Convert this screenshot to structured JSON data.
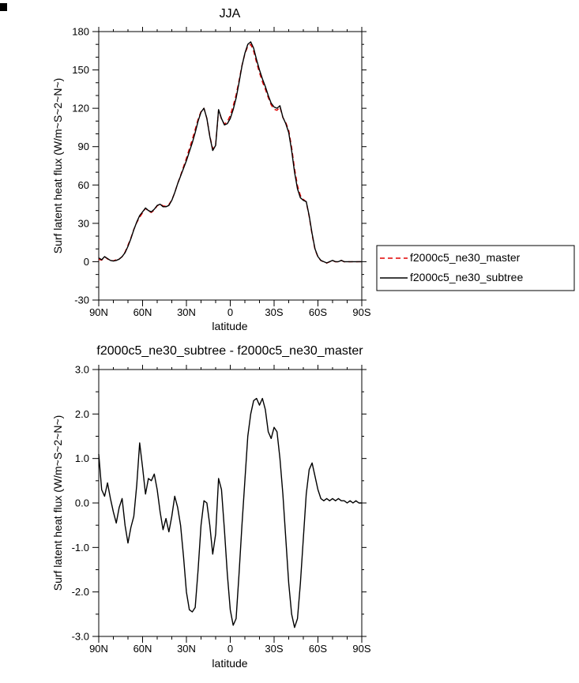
{
  "colors": {
    "background": "#ffffff",
    "axis": "#000000"
  },
  "chart_data": [
    {
      "type": "line",
      "title": "JJA",
      "xlabel": "latitude",
      "ylabel": "Surf latent heat flux (W/m~S~2~N~)",
      "xlim": [
        90,
        -90
      ],
      "ylim": [
        -30,
        180
      ],
      "x_tick_values": [
        90,
        60,
        30,
        0,
        -30,
        -60,
        -90
      ],
      "x_tick_labels": [
        "90N",
        "60N",
        "30N",
        "0",
        "30S",
        "60S",
        "90S"
      ],
      "x_minor_step": 10,
      "y_tick_values": [
        180,
        150,
        120,
        90,
        60,
        30,
        0,
        -30
      ],
      "y_tick_labels": [
        "180",
        "150",
        "120",
        "90",
        "60",
        "30",
        "0",
        "-30"
      ],
      "y_minor_step": 10,
      "x": [
        90,
        88,
        86,
        84,
        82,
        80,
        78,
        76,
        74,
        72,
        70,
        68,
        66,
        64,
        62,
        60,
        58,
        56,
        54,
        52,
        50,
        48,
        46,
        44,
        42,
        40,
        38,
        36,
        34,
        32,
        30,
        28,
        26,
        24,
        22,
        20,
        18,
        16,
        14,
        12,
        10,
        8,
        6,
        4,
        2,
        0,
        -2,
        -4,
        -6,
        -8,
        -10,
        -12,
        -14,
        -16,
        -18,
        -20,
        -22,
        -24,
        -26,
        -28,
        -30,
        -32,
        -34,
        -36,
        -38,
        -40,
        -42,
        -44,
        -46,
        -48,
        -50,
        -52,
        -54,
        -56,
        -58,
        -60,
        -62,
        -64,
        -66,
        -68,
        -70,
        -72,
        -74,
        -76,
        -78,
        -80,
        -82,
        -84,
        -86,
        -88,
        -90
      ],
      "series": [
        {
          "name": "f2000c5_ne30_master",
          "color": "#e00000",
          "style": "dashed",
          "values": [
            1.9,
            1.2,
            3.9,
            2.1,
            0.9,
            0.7,
            1.5,
            2.1,
            3.9,
            7.5,
            12.9,
            18.6,
            25.3,
            30.6,
            34.7,
            38.2,
            41.8,
            39.5,
            38.5,
            40.4,
            43.7,
            45.2,
            43.6,
            43.4,
            44.7,
            48.3,
            53.9,
            61.1,
            67.5,
            74.2,
            81,
            88.4,
            95.5,
            103.4,
            111.5,
            117.5,
            120,
            112,
            98.5,
            88.2,
            91.7,
            118.5,
            111.7,
            107.6,
            109.6,
            114.4,
            121.8,
            130.6,
            141.6,
            153.5,
            162.5,
            168.5,
            170,
            164.7,
            155.7,
            147.8,
            140.7,
            134.9,
            128.4,
            122.6,
            119.3,
            118.4,
            121,
            112.8,
            108.8,
            102.8,
            89.5,
            72.8,
            59.6,
            51.8,
            48.8,
            46.8,
            35.3,
            21.1,
            9.4,
            3.7,
            0.9,
            -0.1,
            -1.1,
            -0.1,
            0.9,
            -0.1,
            -0.1,
            1,
            -0.1,
            0,
            -0.1,
            0,
            -0.1,
            0,
            0
          ]
        },
        {
          "name": "f2000c5_ne30_subtree",
          "color": "#000000",
          "style": "solid",
          "values": [
            3,
            1.5,
            4,
            2.5,
            1,
            0.5,
            1,
            2,
            4,
            7,
            12,
            18,
            25,
            31,
            36,
            39,
            42,
            40,
            39,
            41,
            44,
            45,
            43,
            43,
            44,
            48,
            54,
            61,
            67,
            73,
            79,
            86,
            93,
            101,
            110,
            117,
            120,
            112,
            98,
            87,
            91,
            119,
            112,
            107,
            108,
            112,
            119,
            128,
            140,
            153,
            163,
            170,
            172,
            167,
            158,
            150,
            143,
            137,
            130,
            124,
            121,
            120,
            122,
            113,
            108,
            101,
            87,
            70,
            57,
            50,
            48,
            47,
            36,
            22,
            10,
            4,
            1,
            0,
            -1,
            0,
            1,
            0,
            0,
            1,
            0,
            0,
            0,
            0,
            0,
            0,
            0
          ]
        }
      ]
    },
    {
      "type": "line",
      "title": "f2000c5_ne30_subtree - f2000c5_ne30_master",
      "xlabel": "latitude",
      "ylabel": "Surf latent heat flux (W/m~S~2~N~)",
      "xlim": [
        90,
        -90
      ],
      "ylim": [
        -3,
        3
      ],
      "x_tick_values": [
        90,
        60,
        30,
        0,
        -30,
        -60,
        -90
      ],
      "x_tick_labels": [
        "90N",
        "60N",
        "30N",
        "0",
        "30S",
        "60S",
        "90S"
      ],
      "x_minor_step": 10,
      "y_tick_values": [
        3,
        2,
        1,
        0,
        -1,
        -2,
        -3
      ],
      "y_tick_labels": [
        "3.0",
        "2.0",
        "1.0",
        "0.0",
        "-1.0",
        "-2.0",
        "-3.0"
      ],
      "y_minor_step": 0.5,
      "x": [
        90,
        88,
        86,
        84,
        82,
        80,
        78,
        76,
        74,
        72,
        70,
        68,
        66,
        64,
        62,
        60,
        58,
        56,
        54,
        52,
        50,
        48,
        46,
        44,
        42,
        40,
        38,
        36,
        34,
        32,
        30,
        28,
        26,
        24,
        22,
        20,
        18,
        16,
        14,
        12,
        10,
        8,
        6,
        4,
        2,
        0,
        -2,
        -4,
        -6,
        -8,
        -10,
        -12,
        -14,
        -16,
        -18,
        -20,
        -22,
        -24,
        -26,
        -28,
        -30,
        -32,
        -34,
        -36,
        -38,
        -40,
        -42,
        -44,
        -46,
        -48,
        -50,
        -52,
        -54,
        -56,
        -58,
        -60,
        -62,
        -64,
        -66,
        -68,
        -70,
        -72,
        -74,
        -76,
        -78,
        -80,
        -82,
        -84,
        -86,
        -88,
        -90
      ],
      "series": [
        {
          "name": "f2000c5_ne30_subtree - f2000c5_ne30_master",
          "color": "#000000",
          "style": "solid",
          "values": [
            1.1,
            0.3,
            0.15,
            0.45,
            0.1,
            -0.2,
            -0.45,
            -0.1,
            0.1,
            -0.5,
            -0.9,
            -0.55,
            -0.3,
            0.4,
            1.35,
            0.8,
            0.2,
            0.55,
            0.5,
            0.65,
            0.3,
            -0.2,
            -0.6,
            -0.35,
            -0.65,
            -0.3,
            0.15,
            -0.1,
            -0.5,
            -1.2,
            -2.0,
            -2.4,
            -2.45,
            -2.35,
            -1.5,
            -0.5,
            0.05,
            0.0,
            -0.5,
            -1.15,
            -0.7,
            0.55,
            0.3,
            -0.6,
            -1.6,
            -2.4,
            -2.75,
            -2.6,
            -1.6,
            -0.5,
            0.5,
            1.5,
            2.0,
            2.3,
            2.35,
            2.2,
            2.35,
            2.1,
            1.6,
            1.45,
            1.7,
            1.6,
            1.0,
            0.2,
            -0.8,
            -1.8,
            -2.5,
            -2.8,
            -2.6,
            -1.8,
            -0.8,
            0.2,
            0.75,
            0.9,
            0.6,
            0.3,
            0.1,
            0.05,
            0.1,
            0.05,
            0.1,
            0.05,
            0.1,
            0.05,
            0.05,
            0.0,
            0.05,
            0.0,
            0.05,
            0.0,
            0.0
          ]
        }
      ]
    }
  ]
}
